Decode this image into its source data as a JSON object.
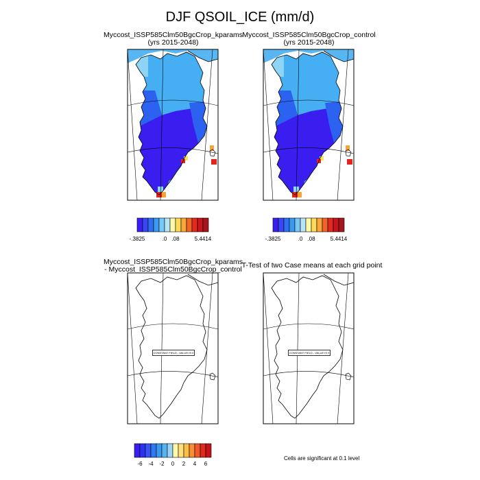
{
  "figure": {
    "title": "DJF QSOIL_ICE (mm/d)"
  },
  "panels": {
    "top_left": {
      "title_line1": "Myccost_ISSP585Clm50BgcCrop_kparams",
      "title_line2": "(yrs 2015-2048)"
    },
    "top_right": {
      "title_line1": "Myccost_ISSP585Clm50BgcCrop_control",
      "title_line2": "(yrs 2015-2048)"
    },
    "bottom_left": {
      "title_line1": "Myccost_ISSP585Clm50BgcCrop_kparams",
      "title_line2": "- Myccost_ISSP585Clm50BgcCrop_control",
      "field_label": "CONSTANT FIELD - VALUE IS 0"
    },
    "bottom_right": {
      "title_line1": "T-Test of two Case means at each grid point",
      "field_label": "CONSTANT FIELD - VALUE IS 0"
    }
  },
  "colorbars": {
    "top": {
      "colors": [
        "#3b1ff0",
        "#3a46f5",
        "#2f6ff2",
        "#3a9af0",
        "#77c8f3",
        "#b7e3f6",
        "#fff8a8",
        "#fddb5a",
        "#f9a63a",
        "#f1642c",
        "#e22a1e",
        "#c8141a",
        "#a5161e"
      ],
      "tick_labels": [
        "-.3825",
        ".0",
        ".08",
        "5.4414"
      ]
    },
    "bottom": {
      "colors": [
        "#3b1ff0",
        "#2e33f3",
        "#3a55f5",
        "#2f78f2",
        "#3a9af0",
        "#58b4f0",
        "#9bd5f5",
        "#fff8a8",
        "#fde07a",
        "#fbbe4a",
        "#f78d35",
        "#ef5a28",
        "#df2a1e",
        "#c4121a"
      ],
      "tick_labels": [
        "-6",
        "-4",
        "-2",
        "0",
        "2",
        "4",
        "6"
      ]
    }
  },
  "significance_note": "Cells are significant at 0.1 level",
  "map_palette": {
    "deep": "#3a1ef0",
    "mid": "#2c62f0",
    "light": "#46aef2",
    "pale": "#8ed4f6",
    "orange": "#f6a33a",
    "red": "#e2241c",
    "yellow": "#fce45a"
  }
}
